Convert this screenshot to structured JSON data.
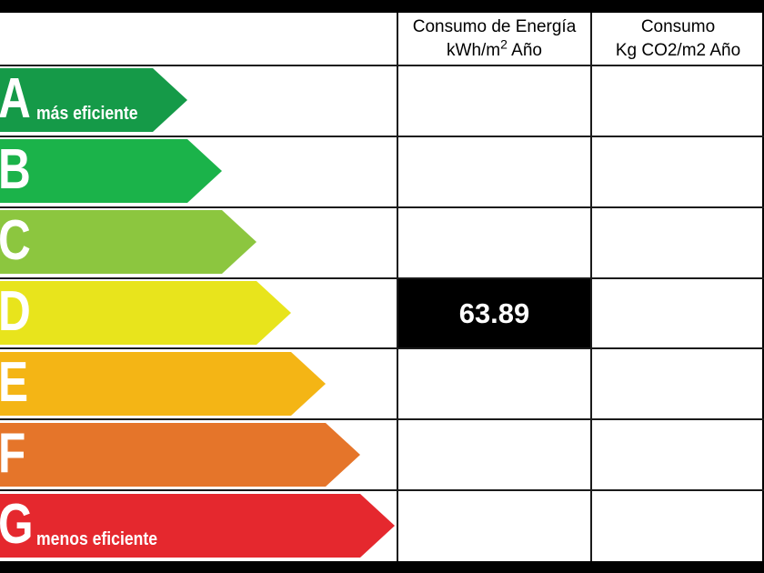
{
  "headers": {
    "energy_line1": "Consumo de Energía",
    "energy_line2_main": "kWh/m",
    "energy_line2_sup": "2",
    "energy_line2_tail": " Año",
    "co2_line1": "Consumo",
    "co2_line2": "Kg CO2/m2 Año"
  },
  "ratings": [
    {
      "letter": "A",
      "sub": "más eficiente",
      "color": "#159a48"
    },
    {
      "letter": "B",
      "sub": "",
      "color": "#1bb34a"
    },
    {
      "letter": "C",
      "sub": "",
      "color": "#8cc63f"
    },
    {
      "letter": "D",
      "sub": "",
      "color": "#e8e41c"
    },
    {
      "letter": "E",
      "sub": "",
      "color": "#f4b515"
    },
    {
      "letter": "F",
      "sub": "",
      "color": "#e5752a"
    },
    {
      "letter": "G",
      "sub": "menos eficiente",
      "color": "#e5282e"
    }
  ],
  "energy_value": "63.89",
  "energy_value_rating": "D"
}
